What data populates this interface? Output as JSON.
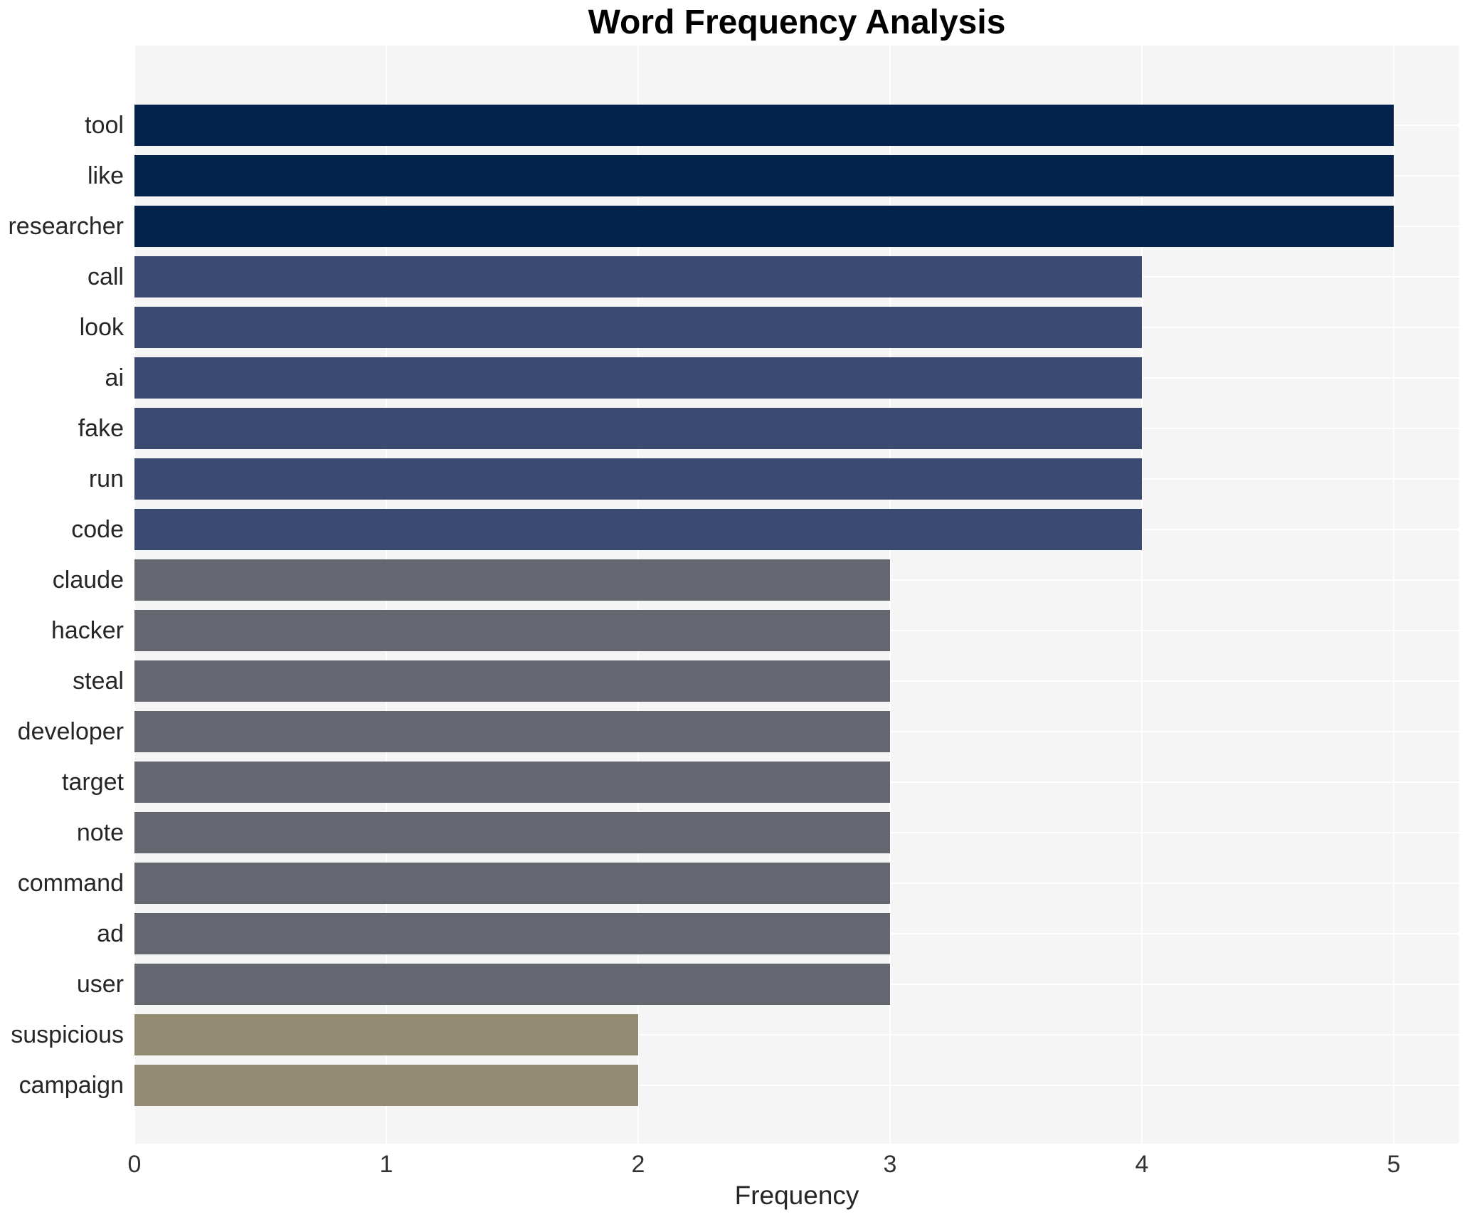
{
  "chart_data": {
    "type": "bar",
    "orientation": "horizontal",
    "title": "Word Frequency Analysis",
    "xlabel": "Frequency",
    "ylabel": "",
    "categories": [
      "tool",
      "like",
      "researcher",
      "call",
      "look",
      "ai",
      "fake",
      "run",
      "code",
      "claude",
      "hacker",
      "steal",
      "developer",
      "target",
      "note",
      "command",
      "ad",
      "user",
      "suspicious",
      "campaign"
    ],
    "values": [
      5,
      5,
      5,
      4,
      4,
      4,
      4,
      4,
      4,
      3,
      3,
      3,
      3,
      3,
      3,
      3,
      3,
      3,
      2,
      2
    ],
    "bar_colors": [
      "#03234d",
      "#03234d",
      "#03234d",
      "#3b4a70",
      "#3b4a70",
      "#3b4a70",
      "#3b4a70",
      "#3b4a70",
      "#3b4a70",
      "#64676f",
      "#64676f",
      "#64676f",
      "#64676f",
      "#64676f",
      "#64676f",
      "#64676f",
      "#64676f",
      "#64676f",
      "#938c73",
      "#938c73"
    ],
    "color_by_value": {
      "5": "#03234d",
      "4": "#3b4a70",
      "3": "#64676f",
      "2": "#938c73"
    },
    "xticks": [
      0,
      1,
      2,
      3,
      4,
      5
    ],
    "xlim": [
      0,
      5.26
    ],
    "grid": "on",
    "gridline_color": "#ffffff",
    "legend": "none"
  },
  "colors": {
    "page_background": "#ffffff",
    "plot_background": "#f5f5f6",
    "grid": "#ffffff",
    "title_text": "#000000",
    "axis_label_text": "#262626",
    "tick_text": "#333333"
  }
}
